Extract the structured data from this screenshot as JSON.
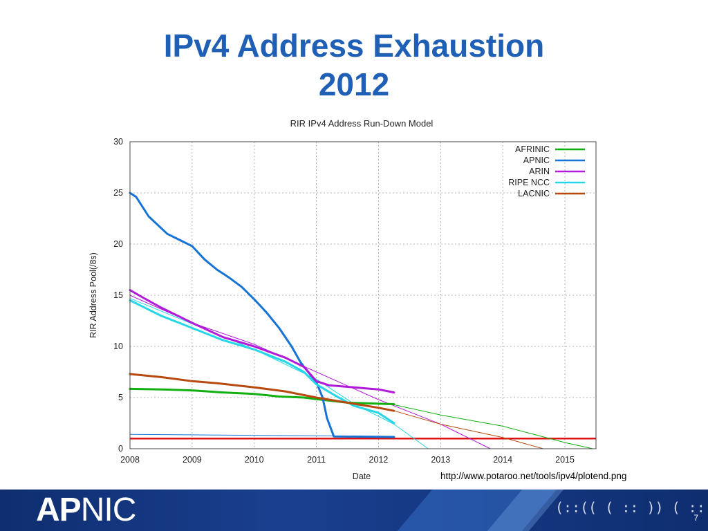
{
  "slide": {
    "title_line1": "IPv4 Address Exhaustion",
    "title_line2": "2012",
    "source_url": "http://www.potaroo.net/tools/ipv4/plotend.png",
    "page_number": "7",
    "logo_bold": "AP",
    "logo_light": "NIC",
    "footer_glyphs": "(::(( ( :: )) ( :: ( :: )"
  },
  "colors": {
    "title": "#1f5fb5",
    "footer": "#14337a",
    "AFRINIC": "#11b011",
    "APNIC": "#1673d6",
    "ARIN": "#b21ad9",
    "RIPE NCC": "#25d7e6",
    "LACNIC": "#b84a10",
    "threshold": "#dd1111"
  },
  "chart_data": {
    "type": "line",
    "title": "RIR IPv4 Address Run-Down Model",
    "xlabel": "Date",
    "ylabel": "RIR Address Pool(/8s)",
    "xlim": [
      2008,
      2015.5
    ],
    "ylim": [
      0,
      30
    ],
    "x_ticks": [
      "2008",
      "2009",
      "2010",
      "2011",
      "2012",
      "2013",
      "2014",
      "2015"
    ],
    "y_ticks": [
      "0",
      "5",
      "10",
      "15",
      "20",
      "25",
      "30"
    ],
    "grid": true,
    "legend_position": "top-right",
    "threshold": {
      "y": 1.0
    },
    "series": [
      {
        "name": "AFRINIC",
        "actual": [
          [
            2008,
            5.85
          ],
          [
            2008.5,
            5.8
          ],
          [
            2009,
            5.7
          ],
          [
            2009.5,
            5.5
          ],
          [
            2010,
            5.35
          ],
          [
            2010.4,
            5.1
          ],
          [
            2010.8,
            5.0
          ],
          [
            2011,
            4.85
          ],
          [
            2011.5,
            4.5
          ],
          [
            2012,
            4.4
          ],
          [
            2012.25,
            4.35
          ]
        ],
        "projection": [
          [
            2012.25,
            4.3
          ],
          [
            2013,
            3.3
          ],
          [
            2014,
            2.2
          ],
          [
            2015,
            0.6
          ],
          [
            2015.45,
            0.0
          ]
        ]
      },
      {
        "name": "APNIC",
        "actual": [
          [
            2008,
            25.0
          ],
          [
            2008.1,
            24.6
          ],
          [
            2008.3,
            22.7
          ],
          [
            2008.6,
            21.0
          ],
          [
            2009,
            19.8
          ],
          [
            2009.2,
            18.5
          ],
          [
            2009.4,
            17.5
          ],
          [
            2009.6,
            16.7
          ],
          [
            2009.8,
            15.8
          ],
          [
            2010,
            14.6
          ],
          [
            2010.2,
            13.3
          ],
          [
            2010.4,
            11.8
          ],
          [
            2010.6,
            10.0
          ],
          [
            2010.75,
            8.4
          ],
          [
            2011,
            6.5
          ],
          [
            2011.1,
            5.0
          ],
          [
            2011.17,
            3.0
          ],
          [
            2011.28,
            1.2
          ],
          [
            2012.25,
            1.15
          ]
        ],
        "projection": [
          [
            2008,
            1.4
          ],
          [
            2011.28,
            1.25
          ]
        ]
      },
      {
        "name": "ARIN",
        "actual": [
          [
            2008,
            15.5
          ],
          [
            2008.2,
            14.8
          ],
          [
            2008.5,
            13.8
          ],
          [
            2009,
            12.3
          ],
          [
            2009.5,
            10.9
          ],
          [
            2010,
            10.0
          ],
          [
            2010.5,
            8.9
          ],
          [
            2010.8,
            8.0
          ],
          [
            2011,
            6.6
          ],
          [
            2011.2,
            6.2
          ],
          [
            2011.6,
            6.0
          ],
          [
            2012,
            5.8
          ],
          [
            2012.25,
            5.5
          ]
        ],
        "projection": [
          [
            2008,
            15.0
          ],
          [
            2009,
            12.3
          ],
          [
            2010,
            10.2
          ],
          [
            2011,
            7.5
          ],
          [
            2012,
            4.8
          ],
          [
            2013,
            2.4
          ],
          [
            2013.8,
            0.0
          ]
        ]
      },
      {
        "name": "RIPE NCC",
        "actual": [
          [
            2008,
            14.5
          ],
          [
            2008.2,
            13.9
          ],
          [
            2008.5,
            13.0
          ],
          [
            2009,
            11.8
          ],
          [
            2009.5,
            10.6
          ],
          [
            2010,
            9.7
          ],
          [
            2010.5,
            8.5
          ],
          [
            2010.8,
            7.5
          ],
          [
            2011,
            6.3
          ],
          [
            2011.3,
            5.2
          ],
          [
            2011.6,
            4.2
          ],
          [
            2012,
            3.5
          ],
          [
            2012.25,
            2.5
          ]
        ],
        "projection": [
          [
            2008,
            14.7
          ],
          [
            2009,
            12.2
          ],
          [
            2010,
            9.7
          ],
          [
            2011,
            6.8
          ],
          [
            2011.6,
            4.4
          ],
          [
            2012.25,
            2.4
          ],
          [
            2012.8,
            0.0
          ]
        ]
      },
      {
        "name": "LACNIC",
        "actual": [
          [
            2008,
            7.3
          ],
          [
            2008.5,
            7.0
          ],
          [
            2009,
            6.6
          ],
          [
            2009.4,
            6.4
          ],
          [
            2010,
            6.0
          ],
          [
            2010.5,
            5.6
          ],
          [
            2011,
            5.0
          ],
          [
            2011.5,
            4.5
          ],
          [
            2012,
            4.0
          ],
          [
            2012.25,
            3.7
          ]
        ],
        "projection": [
          [
            2012.25,
            3.7
          ],
          [
            2013,
            2.4
          ],
          [
            2014,
            1.1
          ],
          [
            2014.65,
            0.0
          ]
        ]
      }
    ]
  }
}
